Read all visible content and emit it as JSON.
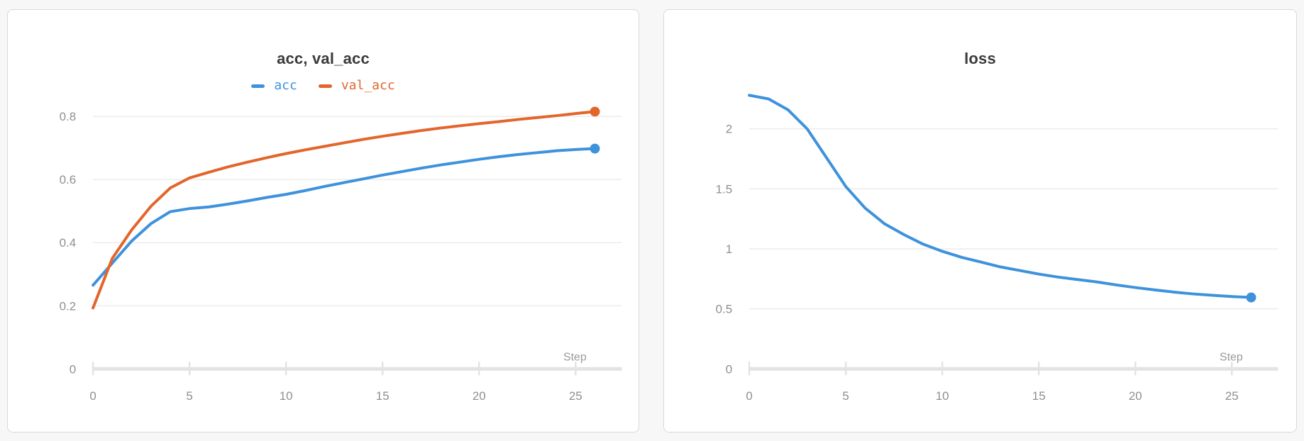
{
  "page": {
    "background_color": "#f7f7f8",
    "card_background_color": "#ffffff",
    "card_border_color": "#d9d9d9"
  },
  "style": {
    "grid_color": "#ececec",
    "axis_color": "#e3e3e3",
    "tick_label_color": "#8f8f8f",
    "axis_label_color": "#9b9b9b",
    "title_color": "#3b3b3b"
  },
  "chart_data": [
    {
      "type": "line",
      "title": "acc, val_acc",
      "xlabel": "Step",
      "grid": "horizontal",
      "legend_position": "top-center",
      "xlim": [
        0,
        27.4
      ],
      "ylim": [
        0,
        0.92
      ],
      "x_ticks": [
        0,
        5,
        10,
        15,
        20,
        25
      ],
      "x_tick_labels": [
        "0",
        "5",
        "10",
        "15",
        "20",
        "25"
      ],
      "y_ticks": [
        0,
        0.2,
        0.4,
        0.6,
        0.8
      ],
      "y_tick_labels": [
        "0",
        "0.2",
        "0.4",
        "0.6",
        "0.8"
      ],
      "x": [
        0,
        1,
        2,
        3,
        4,
        5,
        6,
        7,
        8,
        9,
        10,
        11,
        12,
        13,
        14,
        15,
        16,
        17,
        18,
        19,
        20,
        21,
        22,
        23,
        24,
        25,
        26
      ],
      "series": [
        {
          "name": "acc",
          "color": "#3e92dc",
          "end_dot": true,
          "values": [
            0.265,
            0.335,
            0.405,
            0.46,
            0.498,
            0.508,
            0.513,
            0.522,
            0.532,
            0.543,
            0.553,
            0.565,
            0.578,
            0.59,
            0.602,
            0.614,
            0.625,
            0.636,
            0.646,
            0.655,
            0.664,
            0.672,
            0.679,
            0.685,
            0.691,
            0.695,
            0.698
          ]
        },
        {
          "name": "val_acc",
          "color": "#e2662c",
          "end_dot": true,
          "values": [
            0.193,
            0.35,
            0.44,
            0.515,
            0.573,
            0.605,
            0.623,
            0.64,
            0.655,
            0.669,
            0.682,
            0.694,
            0.705,
            0.716,
            0.727,
            0.737,
            0.746,
            0.755,
            0.763,
            0.77,
            0.777,
            0.783,
            0.79,
            0.796,
            0.802,
            0.809,
            0.815
          ]
        }
      ]
    },
    {
      "type": "line",
      "title": "loss",
      "xlabel": "Step",
      "grid": "horizontal",
      "legend_position": "none",
      "xlim": [
        0,
        27.4
      ],
      "ylim": [
        0,
        2.42
      ],
      "x_ticks": [
        0,
        5,
        10,
        15,
        20,
        25
      ],
      "x_tick_labels": [
        "0",
        "5",
        "10",
        "15",
        "20",
        "25"
      ],
      "y_ticks": [
        0,
        0.5,
        1,
        1.5,
        2
      ],
      "y_tick_labels": [
        "0",
        "0.5",
        "1",
        "1.5",
        "2"
      ],
      "x": [
        0,
        1,
        2,
        3,
        4,
        5,
        6,
        7,
        8,
        9,
        10,
        11,
        12,
        13,
        14,
        15,
        16,
        17,
        18,
        19,
        20,
        21,
        22,
        23,
        24,
        25,
        26
      ],
      "series": [
        {
          "name": "loss",
          "color": "#3e92dc",
          "end_dot": true,
          "values": [
            2.28,
            2.25,
            2.16,
            2.0,
            1.76,
            1.52,
            1.34,
            1.21,
            1.12,
            1.04,
            0.98,
            0.93,
            0.89,
            0.85,
            0.82,
            0.79,
            0.765,
            0.745,
            0.725,
            0.7,
            0.678,
            0.658,
            0.64,
            0.625,
            0.613,
            0.603,
            0.595
          ]
        }
      ]
    }
  ]
}
